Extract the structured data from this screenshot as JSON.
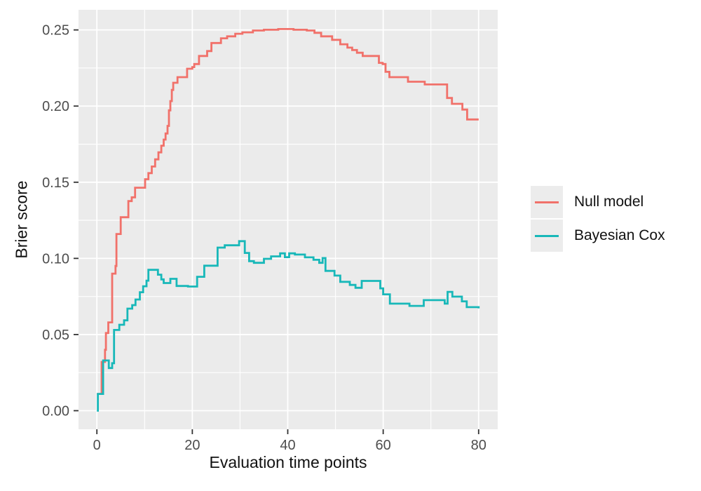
{
  "chart_data": {
    "type": "line",
    "line_style": "step-after",
    "title": "",
    "xlabel": "Evaluation time points",
    "ylabel": "Brier score",
    "x_ticks": [
      {
        "v": 0,
        "label": "0"
      },
      {
        "v": 20,
        "label": "20"
      },
      {
        "v": 40,
        "label": "40"
      },
      {
        "v": 60,
        "label": "60"
      },
      {
        "v": 80,
        "label": "80"
      }
    ],
    "x_minor": [
      10,
      30,
      50,
      70
    ],
    "y_ticks": [
      {
        "v": 0.0,
        "label": "0.00"
      },
      {
        "v": 0.05,
        "label": "0.05"
      },
      {
        "v": 0.1,
        "label": "0.10"
      },
      {
        "v": 0.15,
        "label": "0.15"
      },
      {
        "v": 0.2,
        "label": "0.20"
      },
      {
        "v": 0.25,
        "label": "0.25"
      }
    ],
    "y_minor": [
      0.025,
      0.075,
      0.125,
      0.175,
      0.225
    ],
    "xlim": [
      -3.85,
      84.0
    ],
    "ylim": [
      -0.0122,
      0.2632
    ],
    "grid": true,
    "panel_bg": "#EBEBEB",
    "grid_color": "#FFFFFF",
    "tick_color": "#333333",
    "tick_label_color": "#4D4D4D",
    "axis_title_color": "#111111",
    "legend": {
      "position": "right",
      "key_bg": "#ECECEC"
    },
    "series": [
      {
        "name": "Null model",
        "color": "#F1716A",
        "points": [
          [
            0,
            0.011
          ],
          [
            1,
            0.032
          ],
          [
            1.7,
            0.04
          ],
          [
            1.9,
            0.051
          ],
          [
            2.4,
            0.058
          ],
          [
            3.2,
            0.09
          ],
          [
            3.9,
            0.095
          ],
          [
            4.1,
            0.116
          ],
          [
            5,
            0.127
          ],
          [
            6.6,
            0.1376
          ],
          [
            7.3,
            0.1401
          ],
          [
            8,
            0.1464
          ],
          [
            10.1,
            0.152
          ],
          [
            10.8,
            0.156
          ],
          [
            11.5,
            0.1603
          ],
          [
            12.2,
            0.165
          ],
          [
            12.9,
            0.1696
          ],
          [
            13.5,
            0.174
          ],
          [
            14,
            0.178
          ],
          [
            14.4,
            0.182
          ],
          [
            14.8,
            0.187
          ],
          [
            15.1,
            0.1972
          ],
          [
            15.4,
            0.2033
          ],
          [
            15.7,
            0.2106
          ],
          [
            16,
            0.2153
          ],
          [
            16.9,
            0.219
          ],
          [
            18.9,
            0.2245
          ],
          [
            20,
            0.2256
          ],
          [
            20.4,
            0.2276
          ],
          [
            21.4,
            0.2329
          ],
          [
            23.1,
            0.2361
          ],
          [
            24,
            0.2414
          ],
          [
            26,
            0.2445
          ],
          [
            27.3,
            0.2458
          ],
          [
            29,
            0.2475
          ],
          [
            30.5,
            0.2484
          ],
          [
            32.7,
            0.2496
          ],
          [
            35,
            0.2501
          ],
          [
            38,
            0.2506
          ],
          [
            41.2,
            0.2501
          ],
          [
            44,
            0.2496
          ],
          [
            45.6,
            0.2481
          ],
          [
            47,
            0.2458
          ],
          [
            49.3,
            0.2435
          ],
          [
            51,
            0.2406
          ],
          [
            52.5,
            0.2384
          ],
          [
            53.5,
            0.2368
          ],
          [
            54.5,
            0.235
          ],
          [
            55.7,
            0.2329
          ],
          [
            59.1,
            0.2284
          ],
          [
            59.9,
            0.2276
          ],
          [
            60.5,
            0.2225
          ],
          [
            61.3,
            0.219
          ],
          [
            65.2,
            0.216
          ],
          [
            68.7,
            0.2142
          ],
          [
            73.4,
            0.2053
          ],
          [
            74.4,
            0.2015
          ],
          [
            76.6,
            0.1977
          ],
          [
            77.6,
            0.1912
          ],
          [
            80,
            0.1912
          ]
        ]
      },
      {
        "name": "Bayesian Cox",
        "color": "#18B8B9",
        "points": [
          [
            0,
            0.0
          ],
          [
            0.2,
            0.011
          ],
          [
            1.3,
            0.033
          ],
          [
            2.5,
            0.028
          ],
          [
            3.2,
            0.0312
          ],
          [
            3.6,
            0.053
          ],
          [
            4.7,
            0.0564
          ],
          [
            5.7,
            0.0593
          ],
          [
            6.4,
            0.067
          ],
          [
            7.4,
            0.0693
          ],
          [
            8.1,
            0.073
          ],
          [
            9,
            0.0778
          ],
          [
            9.7,
            0.0817
          ],
          [
            10.4,
            0.0854
          ],
          [
            10.8,
            0.0925
          ],
          [
            12.8,
            0.0893
          ],
          [
            13.5,
            0.0862
          ],
          [
            14,
            0.0838
          ],
          [
            15.4,
            0.0866
          ],
          [
            16.7,
            0.0819
          ],
          [
            19.1,
            0.0815
          ],
          [
            21,
            0.0879
          ],
          [
            22.5,
            0.0952
          ],
          [
            25.3,
            0.1071
          ],
          [
            26.8,
            0.1086
          ],
          [
            29.8,
            0.1113
          ],
          [
            31,
            0.1036
          ],
          [
            31.9,
            0.0982
          ],
          [
            32.9,
            0.0971
          ],
          [
            35,
            0.0997
          ],
          [
            36.5,
            0.1013
          ],
          [
            38.4,
            0.1033
          ],
          [
            39.4,
            0.1008
          ],
          [
            40.3,
            0.1033
          ],
          [
            41.5,
            0.1025
          ],
          [
            43.6,
            0.1007
          ],
          [
            45.4,
            0.0991
          ],
          [
            46.6,
            0.0971
          ],
          [
            47.3,
            0.1002
          ],
          [
            47.9,
            0.0918
          ],
          [
            49.8,
            0.0887
          ],
          [
            51,
            0.0846
          ],
          [
            53,
            0.0826
          ],
          [
            54.2,
            0.0807
          ],
          [
            55.5,
            0.0852
          ],
          [
            59.4,
            0.0803
          ],
          [
            60,
            0.0764
          ],
          [
            61.4,
            0.0703
          ],
          [
            65.5,
            0.0688
          ],
          [
            68.5,
            0.0726
          ],
          [
            72.9,
            0.0703
          ],
          [
            73.5,
            0.078
          ],
          [
            74.5,
            0.0749
          ],
          [
            76.5,
            0.0718
          ],
          [
            77.5,
            0.068
          ],
          [
            80,
            0.0672
          ]
        ]
      }
    ]
  }
}
